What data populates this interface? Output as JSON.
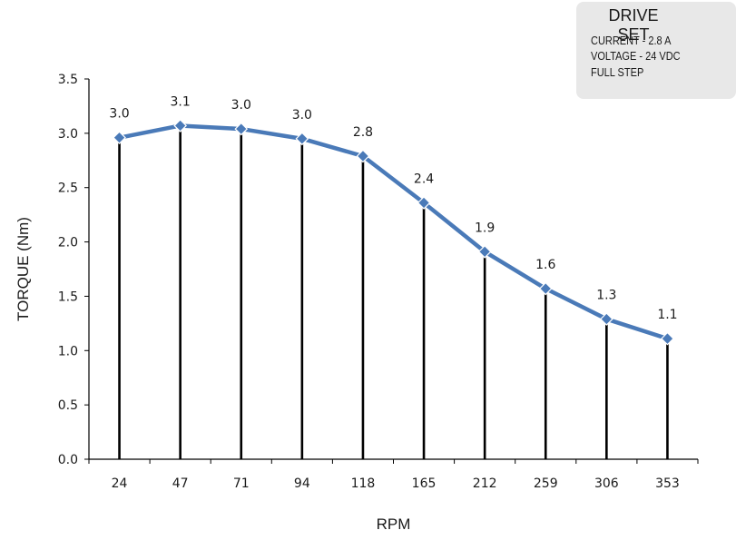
{
  "drive_box": {
    "title": "DRIVE SET",
    "lines": [
      "CURRENT - 2.8 A",
      "VOLTAGE - 24 VDC",
      "FULL STEP"
    ]
  },
  "chart_data": {
    "type": "line",
    "categories": [
      "24",
      "47",
      "71",
      "94",
      "118",
      "165",
      "212",
      "259",
      "306",
      "353"
    ],
    "values": [
      2.96,
      3.07,
      3.04,
      2.95,
      2.79,
      2.36,
      1.91,
      1.57,
      1.29,
      1.11
    ],
    "data_labels": [
      "3.0",
      "3.1",
      "3.0",
      "3.0",
      "2.8",
      "2.4",
      "1.9",
      "1.6",
      "1.3",
      "1.1"
    ],
    "xlabel": "RPM",
    "ylabel": "TORQUE (Nm)",
    "ylim": [
      0,
      3.5
    ],
    "yticks": [
      "0.0",
      "0.5",
      "1.0",
      "1.5",
      "2.0",
      "2.5",
      "3.0",
      "3.5"
    ],
    "drop_lines": true,
    "grid": false,
    "line_color": "#4a7ab8",
    "drop_line_color": "#000000"
  }
}
